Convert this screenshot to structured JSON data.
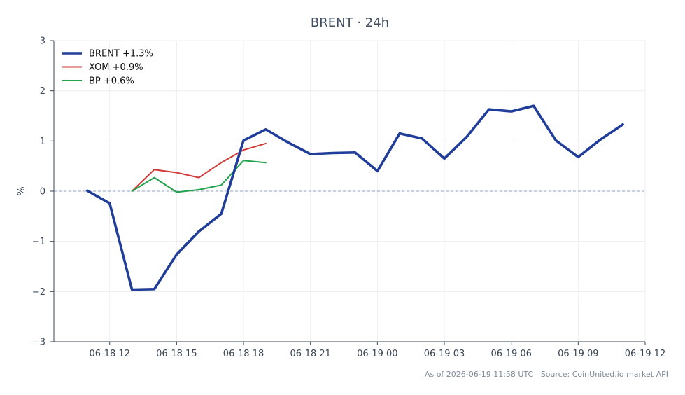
{
  "chart_data": {
    "type": "line",
    "title": "BRENT · 24h",
    "xlabel": "",
    "ylabel": "%",
    "ylim": [
      -3,
      3
    ],
    "xlim": [
      "2026-06-18 09:30",
      "2026-06-19 12:00"
    ],
    "y_ticks": [
      "−3",
      "−2",
      "−1",
      "0",
      "1",
      "2",
      "3"
    ],
    "y_tick_values": [
      -3,
      -2,
      -1,
      0,
      1,
      2,
      3
    ],
    "x_ticks": [
      "06-18 12",
      "06-18 15",
      "06-18 18",
      "06-18 21",
      "06-19 00",
      "06-19 03",
      "06-19 06",
      "06-19 09",
      "06-19 12"
    ],
    "x_tick_values": [
      "2026-06-18 12:00",
      "2026-06-18 15:00",
      "2026-06-18 18:00",
      "2026-06-18 21:00",
      "2026-06-19 00:00",
      "2026-06-19 03:00",
      "2026-06-19 06:00",
      "2026-06-19 09:00",
      "2026-06-19 12:00"
    ],
    "grid": true,
    "baseline": 0,
    "legend_position": "top-left",
    "series": [
      {
        "name": "BRENT +1.3%",
        "color": "#1f3d99",
        "emphasis": "thick",
        "x": [
          "2026-06-18 11:00",
          "2026-06-18 12:00",
          "2026-06-18 13:00",
          "2026-06-18 14:00",
          "2026-06-18 15:00",
          "2026-06-18 16:00",
          "2026-06-18 17:00",
          "2026-06-18 18:00",
          "2026-06-18 19:00",
          "2026-06-18 20:00",
          "2026-06-18 21:00",
          "2026-06-18 22:00",
          "2026-06-18 23:00",
          "2026-06-19 00:00",
          "2026-06-19 01:00",
          "2026-06-19 02:00",
          "2026-06-19 03:00",
          "2026-06-19 04:00",
          "2026-06-19 05:00",
          "2026-06-19 06:00",
          "2026-06-19 07:00",
          "2026-06-19 08:00",
          "2026-06-19 09:00",
          "2026-06-19 10:00",
          "2026-06-19 11:00"
        ],
        "y": [
          0.01,
          -0.24,
          -1.96,
          -1.95,
          -1.26,
          -0.8,
          -0.45,
          1.01,
          1.23,
          0.97,
          0.74,
          0.76,
          0.77,
          0.4,
          1.15,
          1.05,
          0.65,
          1.08,
          1.63,
          1.59,
          1.7,
          1.01,
          0.68,
          1.03,
          1.33
        ]
      },
      {
        "name": "XOM +0.9%",
        "color": "#d03a35",
        "emphasis": "normal",
        "x": [
          "2026-06-18 13:00",
          "2026-06-18 14:00",
          "2026-06-18 15:00",
          "2026-06-18 16:00",
          "2026-06-18 17:00",
          "2026-06-18 18:00",
          "2026-06-18 19:00"
        ],
        "y": [
          0.0,
          0.43,
          0.37,
          0.27,
          0.57,
          0.82,
          0.95
        ]
      },
      {
        "name": "BP +0.6%",
        "color": "#22a24a",
        "emphasis": "normal",
        "x": [
          "2026-06-18 13:00",
          "2026-06-18 14:00",
          "2026-06-18 15:00",
          "2026-06-18 16:00",
          "2026-06-18 17:00",
          "2026-06-18 18:00",
          "2026-06-18 19:00"
        ],
        "y": [
          0.0,
          0.27,
          -0.02,
          0.03,
          0.12,
          0.61,
          0.57
        ]
      }
    ],
    "footnote": "As of 2026-06-19 11:58 UTC · Source: CoinUnited.io market API"
  }
}
